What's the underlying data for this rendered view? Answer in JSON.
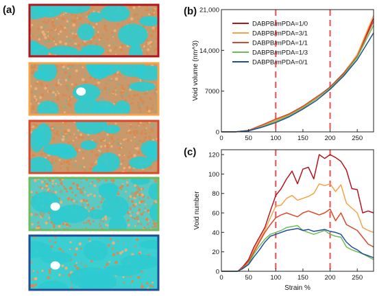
{
  "panel_labels": {
    "a": "(a)",
    "b": "(b)",
    "c": "(c)"
  },
  "snapshots": [
    {
      "frame_color": "#b5131b",
      "fill": "orange"
    },
    {
      "frame_color": "#f5a24a",
      "fill": "orange"
    },
    {
      "frame_color": "#d9482a",
      "fill": "orange"
    },
    {
      "frame_color": "#6dbb5a",
      "fill": "mixed"
    },
    {
      "frame_color": "#1f4e96",
      "fill": "sparse"
    }
  ],
  "colors": {
    "void": "#2ecbd0",
    "polymer": "#d98a4e",
    "marker": "#f05a5a"
  },
  "chart_data": [
    {
      "type": "line",
      "panel": "b",
      "xlim": [
        0,
        280
      ],
      "ylim": [
        0,
        21000
      ],
      "xticks": [
        "0",
        "50",
        "100",
        "150",
        "200",
        "250"
      ],
      "yticks": [
        "0",
        "7000",
        "14,000",
        "21,000"
      ],
      "ylabel": "Void volume (nm^3)",
      "xlabel": "",
      "markers_x": [
        100,
        200
      ],
      "legend_position": "top-left",
      "x": [
        0,
        25,
        50,
        75,
        100,
        125,
        150,
        175,
        200,
        225,
        250,
        280
      ],
      "series": [
        {
          "name": "DABPB/mPDA=1/0",
          "color": "#b5131b",
          "values": [
            0,
            0,
            250,
            1100,
            2100,
            3000,
            4300,
            5900,
            7700,
            10100,
            13200,
            19500
          ]
        },
        {
          "name": "DABPB/mPDA=3/1",
          "color": "#f5a24a",
          "values": [
            0,
            0,
            230,
            1000,
            2000,
            2900,
            4200,
            5800,
            7600,
            10000,
            13300,
            20000
          ]
        },
        {
          "name": "DABPB/mPDA=1/1",
          "color": "#d9482a",
          "values": [
            0,
            0,
            260,
            1200,
            2200,
            3100,
            4400,
            6000,
            7600,
            10000,
            13000,
            19000
          ]
        },
        {
          "name": "DABPB/mPDA=1/3",
          "color": "#6dbb5a",
          "values": [
            0,
            0,
            200,
            900,
            1800,
            2800,
            4100,
            5700,
            7500,
            9800,
            12800,
            18300
          ]
        },
        {
          "name": "DABPB/mPDA=0/1",
          "color": "#1f4e96",
          "values": [
            0,
            0,
            180,
            800,
            1600,
            2600,
            3900,
            5400,
            7300,
            9600,
            12400,
            17000
          ]
        }
      ]
    },
    {
      "type": "line",
      "panel": "c",
      "xlim": [
        0,
        280
      ],
      "ylim": [
        0,
        125
      ],
      "xticks": [
        "0",
        "50",
        "100",
        "150",
        "200",
        "250"
      ],
      "yticks": [
        "0",
        "20",
        "40",
        "60",
        "80",
        "100",
        "120"
      ],
      "ylabel": "Void number",
      "xlabel": "Strain %",
      "markers_x": [
        100,
        200
      ],
      "x": [
        0,
        30,
        40,
        50,
        60,
        70,
        80,
        90,
        100,
        110,
        120,
        130,
        140,
        150,
        160,
        170,
        180,
        190,
        200,
        210,
        220,
        230,
        240,
        250,
        260,
        270,
        280
      ],
      "series": [
        {
          "name": "DABPB/mPDA=1/0",
          "color": "#b5131b",
          "values": [
            0,
            0,
            5,
            12,
            25,
            35,
            45,
            62,
            78,
            85,
            95,
            103,
            90,
            105,
            107,
            95,
            120,
            116,
            120,
            117,
            113,
            104,
            85,
            84,
            60,
            62,
            60
          ]
        },
        {
          "name": "DABPB/mPDA=3/1",
          "color": "#f5a24a",
          "values": [
            0,
            0,
            4,
            10,
            22,
            32,
            42,
            55,
            67,
            68,
            75,
            78,
            73,
            75,
            77,
            80,
            90,
            88,
            90,
            82,
            89,
            70,
            65,
            60,
            45,
            42,
            40
          ]
        },
        {
          "name": "DABPB/mPDA=1/1",
          "color": "#d9482a",
          "values": [
            0,
            0,
            4,
            10,
            20,
            30,
            40,
            48,
            55,
            58,
            60,
            58,
            56,
            60,
            62,
            60,
            58,
            60,
            64,
            52,
            60,
            48,
            45,
            42,
            35,
            28,
            25
          ]
        },
        {
          "name": "DABPB/mPDA=1/3",
          "color": "#6dbb5a",
          "values": [
            0,
            0,
            3,
            8,
            18,
            26,
            33,
            38,
            40,
            42,
            45,
            46,
            47,
            42,
            40,
            38,
            40,
            42,
            38,
            36,
            35,
            25,
            22,
            20,
            18,
            15,
            12
          ]
        },
        {
          "name": "DABPB/mPDA=0/1",
          "color": "#1f4e96",
          "values": [
            0,
            0,
            3,
            7,
            15,
            22,
            30,
            36,
            38,
            40,
            42,
            43,
            44,
            42,
            43,
            41,
            42,
            43,
            41,
            40,
            38,
            30,
            25,
            22,
            18,
            16,
            14
          ]
        }
      ]
    }
  ]
}
